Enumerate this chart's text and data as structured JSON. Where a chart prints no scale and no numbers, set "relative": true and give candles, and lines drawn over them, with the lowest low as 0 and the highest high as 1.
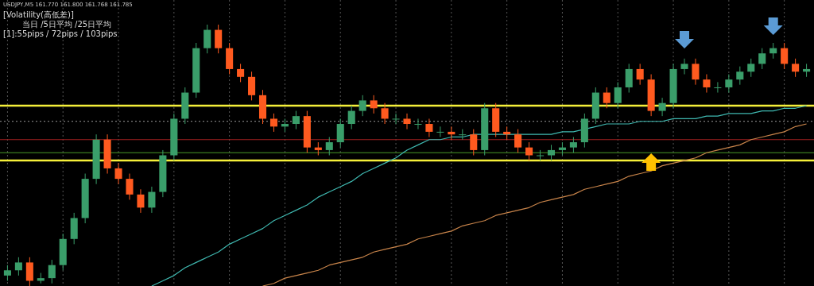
{
  "chart_data": {
    "type": "candlestick",
    "relative": true,
    "title": "USDJPY,M5 161.770 161.800 161.768 161.785",
    "annotations": [
      "[Volatility(高低差)]",
      "当日 /5日平均 /25日平均",
      "[1]:55pips / 72pips / 103pips"
    ],
    "grid": "x",
    "colors": [
      "#3a9e6a",
      "#3a9e6a",
      "#ff5a1f",
      "#3a9e6a",
      "#3a9e6a",
      "#3a9e6a",
      "#3a9e6a",
      "#3a9e6a",
      "#3a9e6a",
      "#ff5a1f",
      "#ff5a1f",
      "#ff5a1f",
      "#ff5a1f",
      "#3a9e6a",
      "#3a9e6a",
      "#3a9e6a",
      "#3a9e6a",
      "#3a9e6a",
      "#3a9e6a",
      "#ff5a1f",
      "#ff5a1f",
      "#ff5a1f",
      "#ff5a1f",
      "#ff5a1f",
      "#ff5a1f",
      "#3a9e6a",
      "#3a9e6a",
      "#ff5a1f",
      "#ff5a1f",
      "#3a9e6a",
      "#3a9e6a",
      "#3a9e6a",
      "#3a9e6a",
      "#ff5a1f",
      "#ff5a1f",
      "#3a9e6a",
      "#ff5a1f",
      "#3a9e6a",
      "#ff5a1f",
      "#3a9e6a",
      "#ff5a1f",
      "#3a9e6a",
      "#ff5a1f",
      "#3a9e6a",
      "#ff5a1f",
      "#ff5a1f",
      "#ff5a1f",
      "#ff5a1f",
      "#3a9e6a",
      "#3a9e6a",
      "#3a9e6a",
      "#3a9e6a",
      "#3a9e6a",
      "#3a9e6a",
      "#ff5a1f",
      "#3a9e6a",
      "#3a9e6a",
      "#ff5a1f",
      "#ff5a1f",
      "#3a9e6a",
      "#3a9e6a",
      "#3a9e6a",
      "#ff5a1f",
      "#ff5a1f",
      "#3a9e6a",
      "#3a9e6a",
      "#3a9e6a",
      "#3a9e6a",
      "#3a9e6a",
      "#3a9e6a",
      "#ff5a1f",
      "#ff5a1f",
      "#3a9e6a"
    ],
    "categories": [
      null,
      null,
      null,
      null,
      null,
      null,
      null,
      null,
      null,
      null,
      null,
      null,
      null,
      null,
      null,
      null,
      null,
      null,
      null,
      null,
      null,
      null,
      null,
      null,
      null,
      null,
      null,
      null,
      null,
      null,
      null,
      null,
      null,
      null,
      null,
      null,
      null,
      null,
      null,
      null,
      null,
      null,
      null,
      null,
      null,
      null,
      null,
      null,
      null,
      null,
      null,
      null,
      null,
      null,
      null,
      null,
      null,
      null,
      null,
      null,
      null,
      null,
      null,
      null,
      null,
      null,
      null,
      null,
      null,
      null,
      null,
      null,
      null
    ],
    "ohlc": [
      [
        0.04,
        0.08,
        0.02,
        0.06
      ],
      [
        0.06,
        0.11,
        0.04,
        0.09
      ],
      [
        0.09,
        0.11,
        0.0,
        0.02
      ],
      [
        0.02,
        0.05,
        0.01,
        0.03
      ],
      [
        0.03,
        0.1,
        0.01,
        0.08
      ],
      [
        0.08,
        0.2,
        0.06,
        0.18
      ],
      [
        0.18,
        0.28,
        0.16,
        0.26
      ],
      [
        0.26,
        0.43,
        0.24,
        0.41
      ],
      [
        0.41,
        0.58,
        0.39,
        0.56
      ],
      [
        0.56,
        0.58,
        0.43,
        0.45
      ],
      [
        0.45,
        0.47,
        0.39,
        0.41
      ],
      [
        0.41,
        0.43,
        0.33,
        0.35
      ],
      [
        0.35,
        0.37,
        0.28,
        0.3
      ],
      [
        0.3,
        0.38,
        0.28,
        0.36
      ],
      [
        0.36,
        0.52,
        0.34,
        0.5
      ],
      [
        0.5,
        0.66,
        0.48,
        0.64
      ],
      [
        0.64,
        0.76,
        0.62,
        0.74
      ],
      [
        0.74,
        0.93,
        0.72,
        0.91
      ],
      [
        0.91,
        1.0,
        0.89,
        0.98
      ],
      [
        0.98,
        1.0,
        0.89,
        0.91
      ],
      [
        0.91,
        0.93,
        0.81,
        0.83
      ],
      [
        0.83,
        0.85,
        0.78,
        0.8
      ],
      [
        0.8,
        0.82,
        0.71,
        0.73
      ],
      [
        0.73,
        0.75,
        0.62,
        0.64
      ],
      [
        0.64,
        0.66,
        0.59,
        0.61
      ],
      [
        0.61,
        0.64,
        0.59,
        0.62
      ],
      [
        0.62,
        0.67,
        0.6,
        0.65
      ],
      [
        0.65,
        0.67,
        0.51,
        0.53
      ],
      [
        0.53,
        0.55,
        0.5,
        0.52
      ],
      [
        0.52,
        0.57,
        0.5,
        0.55
      ],
      [
        0.55,
        0.64,
        0.53,
        0.62
      ],
      [
        0.62,
        0.69,
        0.6,
        0.67
      ],
      [
        0.67,
        0.73,
        0.65,
        0.71
      ],
      [
        0.71,
        0.73,
        0.66,
        0.68
      ],
      [
        0.68,
        0.7,
        0.62,
        0.64
      ],
      [
        0.64,
        0.66,
        0.62,
        0.64
      ],
      [
        0.64,
        0.66,
        0.6,
        0.62
      ],
      [
        0.62,
        0.64,
        0.6,
        0.62
      ],
      [
        0.62,
        0.64,
        0.57,
        0.59
      ],
      [
        0.59,
        0.61,
        0.57,
        0.59
      ],
      [
        0.59,
        0.61,
        0.56,
        0.58
      ],
      [
        0.58,
        0.6,
        0.56,
        0.58
      ],
      [
        0.58,
        0.6,
        0.5,
        0.52
      ],
      [
        0.52,
        0.7,
        0.5,
        0.68
      ],
      [
        0.68,
        0.7,
        0.57,
        0.59
      ],
      [
        0.59,
        0.61,
        0.56,
        0.58
      ],
      [
        0.58,
        0.6,
        0.51,
        0.53
      ],
      [
        0.53,
        0.55,
        0.48,
        0.5
      ],
      [
        0.5,
        0.52,
        0.48,
        0.5
      ],
      [
        0.5,
        0.54,
        0.48,
        0.52
      ],
      [
        0.52,
        0.55,
        0.5,
        0.53
      ],
      [
        0.53,
        0.57,
        0.51,
        0.55
      ],
      [
        0.55,
        0.66,
        0.53,
        0.64
      ],
      [
        0.64,
        0.76,
        0.62,
        0.74
      ],
      [
        0.74,
        0.76,
        0.68,
        0.7
      ],
      [
        0.7,
        0.78,
        0.68,
        0.76
      ],
      [
        0.76,
        0.85,
        0.74,
        0.83
      ],
      [
        0.83,
        0.85,
        0.77,
        0.79
      ],
      [
        0.79,
        0.81,
        0.65,
        0.67
      ],
      [
        0.67,
        0.72,
        0.65,
        0.7
      ],
      [
        0.7,
        0.85,
        0.68,
        0.83
      ],
      [
        0.83,
        0.87,
        0.81,
        0.85
      ],
      [
        0.85,
        0.87,
        0.77,
        0.79
      ],
      [
        0.79,
        0.81,
        0.74,
        0.76
      ],
      [
        0.76,
        0.78,
        0.74,
        0.76
      ],
      [
        0.76,
        0.81,
        0.74,
        0.79
      ],
      [
        0.79,
        0.84,
        0.77,
        0.82
      ],
      [
        0.82,
        0.87,
        0.8,
        0.85
      ],
      [
        0.85,
        0.91,
        0.83,
        0.89
      ],
      [
        0.89,
        0.93,
        0.87,
        0.91
      ],
      [
        0.91,
        0.93,
        0.83,
        0.85
      ],
      [
        0.85,
        0.87,
        0.8,
        0.82
      ],
      [
        0.82,
        0.85,
        0.8,
        0.83
      ]
    ],
    "series": [
      {
        "type": "line",
        "color": "#3fb8b0",
        "values": [
          null,
          null,
          null,
          null,
          null,
          null,
          null,
          null,
          null,
          null,
          null,
          null,
          null,
          0.0,
          0.02,
          0.04,
          0.07,
          0.09,
          0.11,
          0.13,
          0.16,
          0.18,
          0.2,
          0.22,
          0.25,
          0.27,
          0.29,
          0.31,
          0.34,
          0.36,
          0.38,
          0.4,
          0.43,
          0.45,
          0.47,
          0.49,
          0.52,
          0.54,
          0.56,
          0.56,
          0.57,
          0.57,
          0.58,
          0.58,
          0.58,
          0.58,
          0.58,
          0.58,
          0.58,
          0.58,
          0.59,
          0.59,
          0.6,
          0.61,
          0.62,
          0.62,
          0.62,
          0.63,
          0.63,
          0.63,
          0.64,
          0.64,
          0.64,
          0.65,
          0.65,
          0.66,
          0.66,
          0.66,
          0.67,
          0.67,
          0.68,
          0.68,
          0.69
        ]
      },
      {
        "type": "line",
        "color": "#c8844a",
        "values": [
          null,
          null,
          null,
          null,
          null,
          null,
          null,
          null,
          null,
          null,
          null,
          null,
          null,
          null,
          null,
          null,
          null,
          null,
          null,
          null,
          null,
          null,
          null,
          0.0,
          0.01,
          0.03,
          0.04,
          0.05,
          0.06,
          0.08,
          0.09,
          0.1,
          0.11,
          0.13,
          0.14,
          0.15,
          0.16,
          0.18,
          0.19,
          0.2,
          0.21,
          0.23,
          0.24,
          0.25,
          0.27,
          0.28,
          0.29,
          0.3,
          0.32,
          0.33,
          0.34,
          0.35,
          0.37,
          0.38,
          0.39,
          0.4,
          0.42,
          0.43,
          0.44,
          0.46,
          0.47,
          0.48,
          0.49,
          0.51,
          0.52,
          0.53,
          0.54,
          0.56,
          0.57,
          0.58,
          0.59,
          0.61,
          0.62
        ]
      }
    ],
    "ref_lines": [
      {
        "axis": "y",
        "value": 0.69,
        "color": "#f5f03a"
      },
      {
        "axis": "y",
        "value": 0.48,
        "color": "#f5f03a"
      },
      {
        "axis": "y",
        "value": 0.56,
        "color": "#a02020"
      },
      {
        "axis": "y",
        "value": 0.51,
        "color": "#4a9a2a"
      },
      {
        "axis": "y",
        "value": 0.63,
        "color": "#9a9a9a",
        "line_style": "dotted"
      }
    ]
  }
}
